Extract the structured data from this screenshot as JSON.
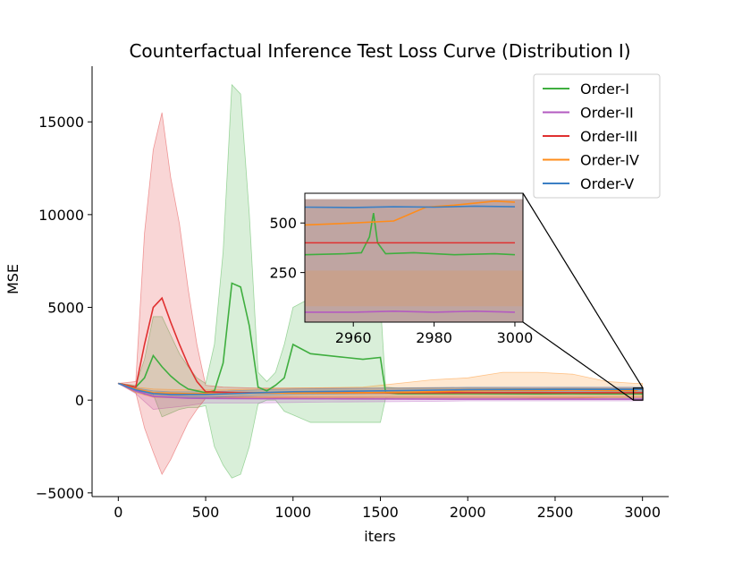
{
  "chart_data": {
    "type": "line",
    "title": "Counterfactual Inference Test Loss Curve (Distribution I)",
    "xlabel": "iters",
    "ylabel": "MSE",
    "xlim": [
      -150,
      3150
    ],
    "ylim": [
      -5200,
      18000
    ],
    "xticks": [
      0,
      500,
      1000,
      1500,
      2000,
      2500,
      3000
    ],
    "yticks": [
      -5000,
      0,
      5000,
      10000,
      15000
    ],
    "xtick_labels": [
      "0",
      "500",
      "1000",
      "1500",
      "2000",
      "2500",
      "3000"
    ],
    "ytick_labels": [
      "−5000",
      "0",
      "5000",
      "10000",
      "15000"
    ],
    "legend_position": "top-right",
    "grid": false,
    "series": [
      {
        "name": "Order-I",
        "color": "#3fae3f",
        "x": [
          0,
          100,
          150,
          200,
          250,
          300,
          350,
          400,
          450,
          500,
          550,
          600,
          650,
          700,
          750,
          800,
          850,
          900,
          950,
          1000,
          1100,
          1200,
          1300,
          1400,
          1500,
          1530,
          1600,
          1800,
          2000,
          2200,
          2400,
          2600,
          2800,
          3000
        ],
        "y": [
          900,
          700,
          1200,
          2400,
          1800,
          1300,
          900,
          600,
          500,
          400,
          500,
          2000,
          6300,
          6100,
          4000,
          700,
          500,
          800,
          1200,
          3000,
          2500,
          2400,
          2300,
          2200,
          2300,
          400,
          350,
          350,
          350,
          345,
          340,
          345,
          340,
          340
        ],
        "upper": [
          900,
          800,
          2200,
          4500,
          4500,
          3500,
          2500,
          1800,
          1200,
          900,
          3000,
          8000,
          17000,
          16500,
          10000,
          1500,
          1000,
          1500,
          3000,
          5000,
          5500,
          5500,
          5500,
          5200,
          5300,
          700,
          650,
          650,
          650,
          640,
          630,
          640,
          630,
          630
        ],
        "lower": [
          900,
          600,
          300,
          300,
          -900,
          -700,
          -500,
          -400,
          -400,
          -300,
          -2500,
          -3500,
          -4200,
          -4000,
          -2500,
          -200,
          0,
          0,
          -600,
          -800,
          -1200,
          -1200,
          -1200,
          -1200,
          -1200,
          100,
          50,
          50,
          50,
          50,
          50,
          50,
          50,
          50
        ]
      },
      {
        "name": "Order-II",
        "color": "#b35bc0",
        "x": [
          0,
          100,
          200,
          300,
          400,
          500,
          800,
          1200,
          1600,
          2000,
          2400,
          2800,
          3000
        ],
        "y": [
          900,
          500,
          200,
          150,
          100,
          90,
          80,
          70,
          60,
          55,
          55,
          55,
          55
        ],
        "upper": [
          900,
          650,
          350,
          250,
          200,
          180,
          170,
          160,
          150,
          140,
          140,
          140,
          140
        ],
        "lower": [
          900,
          350,
          -500,
          -400,
          -300,
          -150,
          -150,
          -100,
          -80,
          -40,
          -40,
          -40,
          -40
        ]
      },
      {
        "name": "Order-III",
        "color": "#e03030",
        "x": [
          0,
          100,
          150,
          200,
          250,
          300,
          350,
          400,
          450,
          500,
          600,
          800,
          1000,
          1400,
          1800,
          2200,
          2600,
          3000
        ],
        "y": [
          900,
          700,
          3000,
          5000,
          5500,
          4200,
          3000,
          1900,
          1000,
          450,
          420,
          400,
          400,
          400,
          400,
          400,
          400,
          400
        ],
        "upper": [
          900,
          1000,
          9000,
          13500,
          15500,
          12000,
          9500,
          6000,
          3000,
          800,
          700,
          650,
          650,
          650,
          650,
          650,
          650,
          650
        ],
        "lower": [
          900,
          400,
          -1500,
          -2800,
          -4000,
          -3200,
          -2200,
          -1200,
          -500,
          100,
          150,
          150,
          150,
          150,
          150,
          150,
          150,
          150
        ]
      },
      {
        "name": "Order-IV",
        "color": "#ff8c1a",
        "x": [
          0,
          100,
          200,
          400,
          600,
          800,
          1000,
          1400,
          1800,
          2000,
          2200,
          2400,
          2600,
          2800,
          2960,
          2980,
          3000
        ],
        "y": [
          900,
          600,
          400,
          350,
          350,
          400,
          380,
          400,
          450,
          500,
          520,
          520,
          540,
          520,
          510,
          580,
          600
        ],
        "upper": [
          900,
          700,
          600,
          550,
          550,
          600,
          650,
          700,
          1100,
          1200,
          1500,
          1500,
          1400,
          1000,
          900,
          900,
          900
        ],
        "lower": [
          900,
          400,
          150,
          100,
          100,
          150,
          100,
          100,
          50,
          50,
          50,
          100,
          100,
          150,
          150,
          150,
          150
        ]
      },
      {
        "name": "Order-V",
        "color": "#3b7fc4",
        "x": [
          0,
          100,
          200,
          300,
          500,
          800,
          1000,
          1500,
          2000,
          2500,
          3000
        ],
        "y": [
          900,
          550,
          350,
          300,
          300,
          400,
          450,
          500,
          560,
          580,
          580
        ],
        "upper": [
          900,
          650,
          500,
          450,
          450,
          550,
          600,
          650,
          700,
          700,
          700
        ],
        "lower": [
          900,
          450,
          200,
          150,
          150,
          250,
          300,
          350,
          420,
          450,
          450
        ]
      }
    ],
    "inset": {
      "xlim": [
        2948,
        3002
      ],
      "ylim": [
        0,
        650
      ],
      "xticks": [
        2960,
        2980,
        3000
      ],
      "yticks": [
        250,
        500
      ],
      "xtick_labels": [
        "2960",
        "2980",
        "3000"
      ],
      "ytick_labels": [
        "250",
        "500"
      ],
      "band_top": 620,
      "band_bottom": 0,
      "series": [
        {
          "name": "Order-I",
          "x": [
            2948,
            2958,
            2962,
            2964,
            2965,
            2966,
            2968,
            2975,
            2985,
            2995,
            3000
          ],
          "y": [
            340,
            345,
            350,
            430,
            550,
            400,
            345,
            350,
            340,
            345,
            340
          ]
        },
        {
          "name": "Order-II",
          "x": [
            2948,
            2960,
            2970,
            2980,
            2990,
            3000
          ],
          "y": [
            50,
            50,
            55,
            50,
            55,
            50
          ]
        },
        {
          "name": "Order-III",
          "x": [
            2948,
            3000
          ],
          "y": [
            400,
            400
          ]
        },
        {
          "name": "Order-IV",
          "x": [
            2948,
            2960,
            2970,
            2978,
            2985,
            2990,
            2995,
            3000
          ],
          "y": [
            490,
            500,
            510,
            580,
            590,
            600,
            610,
            605
          ]
        },
        {
          "name": "Order-V",
          "x": [
            2948,
            2960,
            2970,
            2980,
            2990,
            3000
          ],
          "y": [
            580,
            578,
            582,
            580,
            585,
            582
          ]
        }
      ]
    }
  }
}
